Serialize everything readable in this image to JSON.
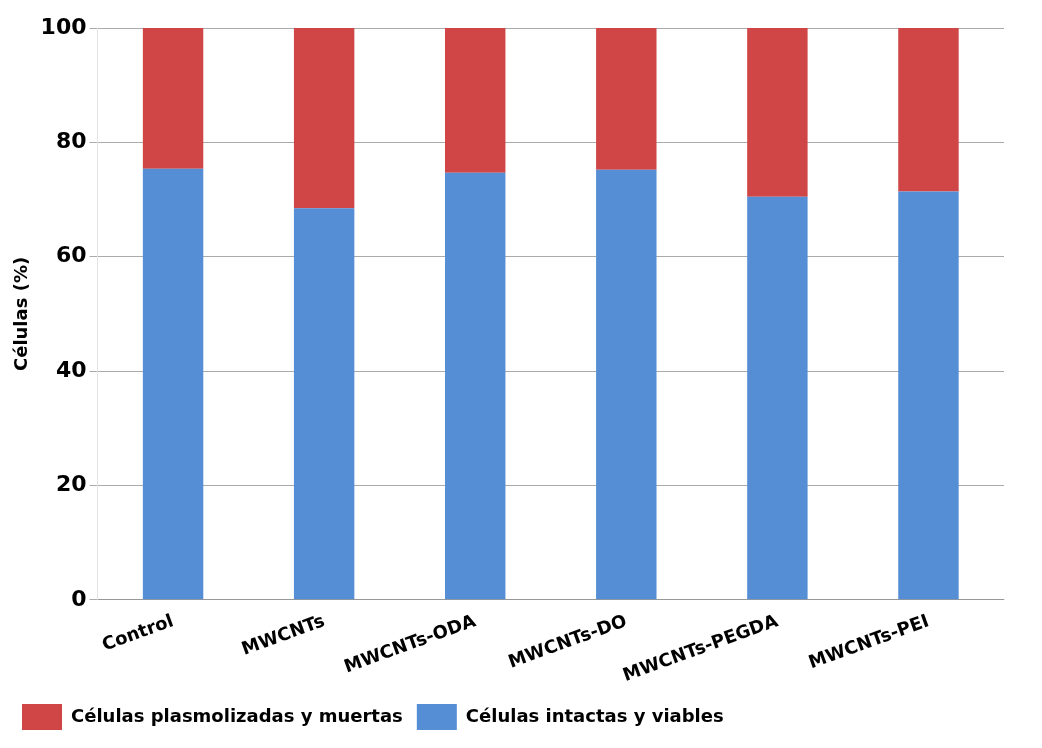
{
  "chart_data": {
    "type": "bar",
    "stacked": true,
    "ylabel": "Células (%)",
    "categories": [
      "Control",
      "MWCNTs",
      "MWCNTs-ODA",
      "MWCNTs-DO",
      "MWCNTs-PEGDA",
      "MWCNTs-PEI"
    ],
    "series": [
      {
        "name": "Células intactas y viables",
        "color": "#558ed5",
        "values": [
          75.4,
          68.5,
          74.7,
          75.2,
          70.5,
          71.4
        ]
      },
      {
        "name": "Células plasmolizadas y muertas",
        "color": "#d04545",
        "values": [
          24.6,
          31.5,
          25.3,
          24.8,
          29.5,
          28.6
        ]
      }
    ],
    "ylim": [
      0,
      100
    ],
    "yticks": [
      0,
      20,
      40,
      60,
      80,
      100
    ],
    "grid": "y",
    "legend": "bottom"
  }
}
